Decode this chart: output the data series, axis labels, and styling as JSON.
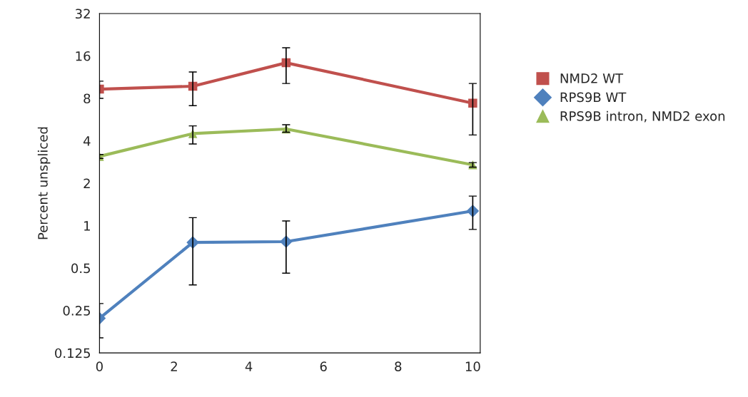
{
  "chart_data": {
    "type": "line",
    "ylabel": "Percent unspliced",
    "x": [
      0,
      2.5,
      5,
      10
    ],
    "log": "y",
    "grid": false,
    "legend": "right",
    "xlim": [
      0,
      10.2
    ],
    "xticks": [
      0,
      2,
      4,
      6,
      8,
      10
    ],
    "ylim": [
      0.125,
      32
    ],
    "yticks": [
      0.125,
      0.25,
      0.5,
      1,
      2,
      4,
      8,
      16,
      32
    ],
    "series": [
      {
        "name": "NMD2 WT",
        "color": "#c0504d",
        "marker": "square",
        "values": [
          9.3,
          9.75,
          14.3,
          7.4
        ],
        "errors": [
          [
            8.0,
            10.6
          ],
          [
            7.1,
            12.3
          ],
          [
            10.2,
            18.3
          ],
          [
            4.4,
            10.2
          ]
        ]
      },
      {
        "name": "RPS9B WT",
        "color": "#4f81bd",
        "marker": "diamond",
        "values": [
          0.22,
          0.76,
          0.77,
          1.27
        ],
        "errors": [
          [
            0.16,
            0.28
          ],
          [
            0.38,
            1.14
          ],
          [
            0.46,
            1.08
          ],
          [
            0.94,
            1.62
          ]
        ]
      },
      {
        "name": "RPS9B intron, NMD2 exon",
        "color": "#9bbb59",
        "marker": "triangle",
        "values": [
          3.1,
          4.5,
          4.85,
          2.7
        ],
        "errors": [
          [
            3.0,
            3.2
          ],
          [
            3.8,
            5.1
          ],
          [
            4.6,
            5.2
          ],
          [
            2.6,
            2.8
          ]
        ]
      }
    ]
  }
}
